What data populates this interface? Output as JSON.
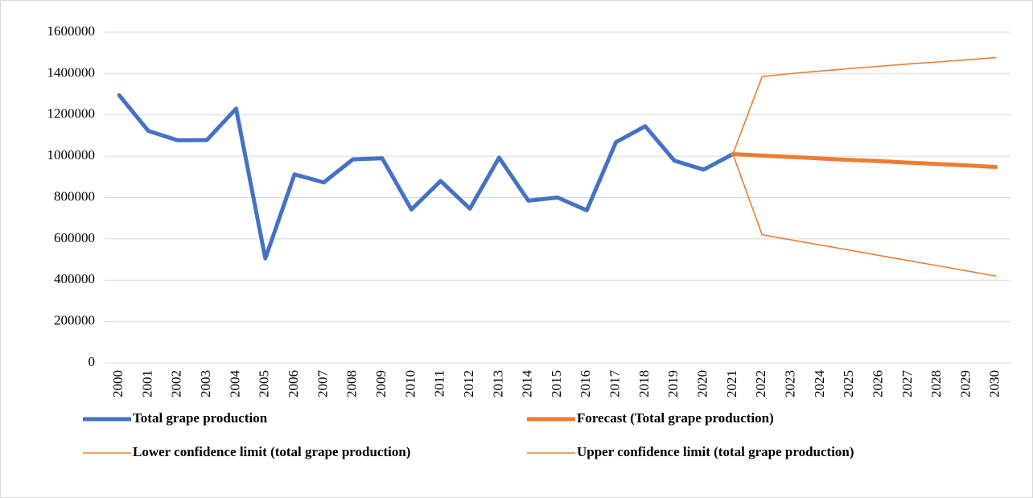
{
  "chart_data": {
    "type": "line",
    "categories": [
      "2000",
      "2001",
      "2002",
      "2003",
      "2004",
      "2005",
      "2006",
      "2007",
      "2008",
      "2009",
      "2010",
      "2011",
      "2012",
      "2013",
      "2014",
      "2015",
      "2016",
      "2017",
      "2018",
      "2019",
      "2020",
      "2021",
      "2022",
      "2023",
      "2024",
      "2025",
      "2026",
      "2027",
      "2028",
      "2029",
      "2030"
    ],
    "series": [
      {
        "name": "Total grape production",
        "color": "#4472c4",
        "values": [
          1295000,
          1122000,
          1077000,
          1078000,
          1230000,
          505000,
          912000,
          873000,
          985000,
          990000,
          742000,
          880000,
          746000,
          993000,
          785000,
          800000,
          738000,
          1068000,
          1145000,
          978000,
          935000,
          1010000,
          null,
          null,
          null,
          null,
          null,
          null,
          null,
          null,
          null
        ]
      },
      {
        "name": "Forecast (Total grape production)",
        "color": "#ed7d31",
        "values": [
          null,
          null,
          null,
          null,
          null,
          null,
          null,
          null,
          null,
          null,
          null,
          null,
          null,
          null,
          null,
          null,
          null,
          null,
          null,
          null,
          null,
          1010000,
          1003000,
          996000,
          989000,
          982000,
          976000,
          969000,
          962000,
          955000,
          948000
        ]
      },
      {
        "name": "Lower confidence limit (total grape production)",
        "color": "#ed7d31",
        "values": [
          null,
          null,
          null,
          null,
          null,
          null,
          null,
          null,
          null,
          null,
          null,
          null,
          null,
          null,
          null,
          null,
          null,
          null,
          null,
          null,
          null,
          1010000,
          620000,
          595000,
          570000,
          545000,
          520000,
          495000,
          470000,
          445000,
          420000
        ]
      },
      {
        "name": "Upper confidence limit (total grape production)",
        "color": "#ed7d31",
        "values": [
          null,
          null,
          null,
          null,
          null,
          null,
          null,
          null,
          null,
          null,
          null,
          null,
          null,
          null,
          null,
          null,
          null,
          null,
          null,
          null,
          null,
          1010000,
          1385000,
          1400000,
          1412000,
          1424000,
          1435000,
          1446000,
          1456000,
          1466000,
          1477000
        ]
      }
    ],
    "ylim": [
      0,
      1600000
    ],
    "yticks": [
      0,
      200000,
      400000,
      600000,
      800000,
      1000000,
      1200000,
      1400000,
      1600000
    ],
    "grid": true
  }
}
